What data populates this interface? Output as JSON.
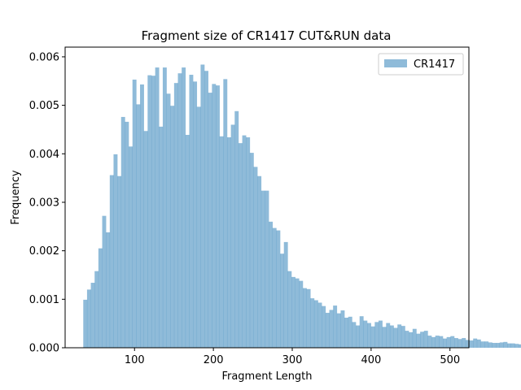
{
  "chart_data": {
    "type": "bar",
    "title": "Fragment size of CR1417 CUT&RUN data",
    "xlabel": "Fragment Length",
    "ylabel": "Frequency",
    "xlim": [
      12,
      524
    ],
    "ylim": [
      0,
      0.0062
    ],
    "grid": false,
    "legend_position": "top-right",
    "xticks": [
      100,
      200,
      300,
      400,
      500
    ],
    "xtick_labels": [
      "100",
      "200",
      "300",
      "400",
      "500"
    ],
    "yticks": [
      0,
      0.001,
      0.002,
      0.003,
      0.004,
      0.005,
      0.006
    ],
    "ytick_labels": [
      "0.000",
      "0.001",
      "0.002",
      "0.003",
      "0.004",
      "0.005",
      "0.006"
    ],
    "bin_start": 35,
    "bin_width": 4.8,
    "series": [
      {
        "name": "CR1417",
        "color": "#1f77b4",
        "opacity": 0.5,
        "values": [
          0.00099,
          0.0012,
          0.00134,
          0.00158,
          0.00205,
          0.00272,
          0.00238,
          0.00356,
          0.00399,
          0.00354,
          0.00476,
          0.00466,
          0.00415,
          0.00553,
          0.00502,
          0.00543,
          0.00447,
          0.00562,
          0.00561,
          0.00578,
          0.00456,
          0.00578,
          0.00524,
          0.00499,
          0.00546,
          0.00566,
          0.00578,
          0.00439,
          0.00563,
          0.00549,
          0.00497,
          0.00584,
          0.00571,
          0.00526,
          0.00544,
          0.00541,
          0.00436,
          0.00554,
          0.00434,
          0.0046,
          0.00488,
          0.00422,
          0.00438,
          0.00434,
          0.00402,
          0.00373,
          0.00354,
          0.00324,
          0.00324,
          0.0026,
          0.00247,
          0.00242,
          0.00194,
          0.00218,
          0.00158,
          0.00146,
          0.00143,
          0.00138,
          0.00123,
          0.00121,
          0.00102,
          0.00098,
          0.00093,
          0.00086,
          0.00072,
          0.00078,
          0.00087,
          0.00071,
          0.00077,
          0.00062,
          0.00064,
          0.00053,
          0.00046,
          0.00065,
          0.00056,
          0.00051,
          0.00044,
          0.00053,
          0.00056,
          0.00043,
          0.00051,
          0.00046,
          0.00041,
          0.00048,
          0.00045,
          0.00035,
          0.00032,
          0.00039,
          0.00029,
          0.00033,
          0.00035,
          0.00025,
          0.00022,
          0.00025,
          0.00024,
          0.00019,
          0.00022,
          0.00024,
          0.0002,
          0.00018,
          0.0002,
          0.00016,
          0.00015,
          0.00019,
          0.00017,
          0.00013,
          0.00013,
          0.00011,
          0.0001,
          0.0001,
          0.00011,
          0.00012,
          9e-05,
          9e-05,
          8e-05,
          7e-05,
          6e-05,
          5e-05,
          4e-05,
          3e-05,
          3e-05,
          2e-05,
          2e-05,
          1e-05,
          1e-05,
          1e-05,
          1e-05,
          1e-05,
          1e-05,
          1e-05,
          1e-05,
          1e-05,
          1e-05,
          1e-05,
          1e-05,
          1e-05,
          1e-05,
          1e-05,
          1e-05,
          1e-05,
          1e-05,
          1e-05,
          1e-05,
          1e-05,
          1e-05
        ]
      }
    ]
  }
}
